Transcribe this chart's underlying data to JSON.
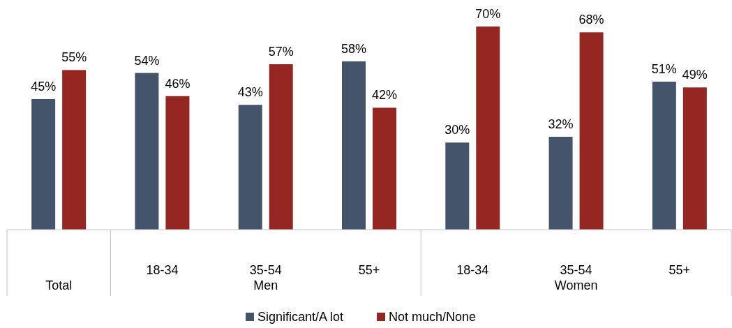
{
  "chart_data": {
    "type": "bar",
    "categories": [
      null,
      "18-34",
      "35-54",
      "55+",
      "18-34",
      "35-54",
      "55+"
    ],
    "annotations": [
      "Total",
      "Men",
      "Women"
    ],
    "series": [
      {
        "name": "Significant/A lot",
        "color": "#44546a",
        "values": [
          45,
          54,
          43,
          58,
          30,
          32,
          51
        ],
        "value_labels": [
          "45%",
          "54%",
          "43%",
          "58%",
          "30%",
          "32%",
          "51%"
        ]
      },
      {
        "name": "Not much/None",
        "color": "#962622",
        "values": [
          55,
          46,
          57,
          42,
          70,
          68,
          49
        ],
        "value_labels": [
          "55%",
          "46%",
          "57%",
          "42%",
          "70%",
          "68%",
          "49%"
        ]
      }
    ],
    "legend": "bottom"
  }
}
